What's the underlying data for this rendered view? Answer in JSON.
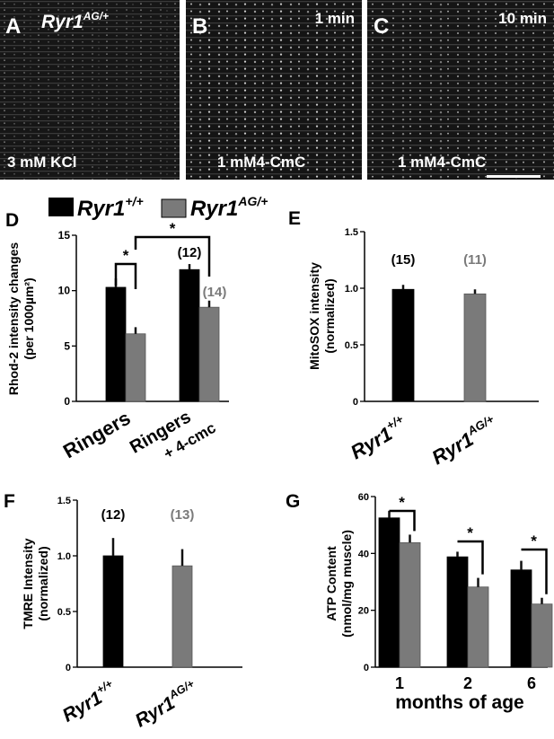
{
  "micro": {
    "panels": [
      {
        "letter": "A",
        "genotype": "Ryr1",
        "genotype_sup": "AG/+",
        "time": "",
        "condition": "3 mM KCl"
      },
      {
        "letter": "B",
        "genotype": "",
        "genotype_sup": "",
        "time": "1 min",
        "condition": "1 mM4-CmC"
      },
      {
        "letter": "C",
        "genotype": "",
        "genotype_sup": "",
        "time": "10 min",
        "condition": "1 mM4-CmC"
      }
    ]
  },
  "legend": {
    "wt": {
      "base": "Ryr1",
      "sup": "+/+",
      "color": "#000000"
    },
    "ag": {
      "base": "Ryr1",
      "sup": "AG/+",
      "color": "#7a7a7a"
    }
  },
  "chart_data": [
    {
      "panel": "D",
      "type": "bar",
      "categories": [
        "Ringers",
        "Ringers + 4-cmc"
      ],
      "series": [
        {
          "name": "Ryr1+/+",
          "values": [
            10.3,
            11.9
          ],
          "errors": [
            0.8,
            0.5
          ],
          "color": "#000000"
        },
        {
          "name": "Ryr1AG/+",
          "values": [
            6.1,
            8.5
          ],
          "errors": [
            0.6,
            0.6
          ],
          "color": "#7a7a7a"
        }
      ],
      "ylim": [
        0,
        15
      ],
      "yticks": [
        0,
        5,
        10,
        15
      ],
      "ylabel_line1": "Rhod-2 intensity changes",
      "ylabel_line2": "(per 1000µm²)",
      "n_labels": [
        "",
        "",
        "(12)",
        "(14)"
      ],
      "significance": [
        "*",
        "*"
      ]
    },
    {
      "panel": "E",
      "type": "bar",
      "categories": [
        "Ryr1+/+",
        "Ryr1AG/+"
      ],
      "values": [
        0.99,
        0.95
      ],
      "errors": [
        0.04,
        0.04
      ],
      "colors": [
        "#000000",
        "#7a7a7a"
      ],
      "ylim": [
        0,
        1.5
      ],
      "yticks": [
        0,
        0.5,
        1.0,
        1.5
      ],
      "ylabel_line1": "MitoSOX intensity",
      "ylabel_line2": "(normalized)",
      "n_labels": [
        "(15)",
        "(11)"
      ]
    },
    {
      "panel": "F",
      "type": "bar",
      "categories": [
        "Ryr1+/+",
        "Ryr1AG/+"
      ],
      "values": [
        1.0,
        0.91
      ],
      "errors": [
        0.16,
        0.15
      ],
      "colors": [
        "#000000",
        "#7a7a7a"
      ],
      "ylim": [
        0,
        1.5
      ],
      "yticks": [
        0,
        0.5,
        1.0,
        1.5
      ],
      "ylabel_line1": "TMRE Intensity",
      "ylabel_line2": "(normalized)",
      "n_labels": [
        "(12)",
        "(13)"
      ]
    },
    {
      "panel": "G",
      "type": "bar",
      "categories": [
        "1",
        "2",
        "6"
      ],
      "series": [
        {
          "name": "Ryr1+/+",
          "values": [
            52.5,
            38.8,
            34.2
          ],
          "errors": [
            2.5,
            1.8,
            3.2
          ],
          "color": "#000000"
        },
        {
          "name": "Ryr1AG/+",
          "values": [
            43.8,
            28.2,
            22.2
          ],
          "errors": [
            2.8,
            3.2,
            2.2
          ],
          "color": "#7a7a7a"
        }
      ],
      "ylim": [
        0,
        60
      ],
      "yticks": [
        0,
        20,
        40,
        60
      ],
      "ylabel_line1": "ATP Content",
      "ylabel_line2": "(nmol/mg muscle)",
      "xlabel": "months of age",
      "significance": [
        "*",
        "*",
        "*"
      ]
    }
  ]
}
